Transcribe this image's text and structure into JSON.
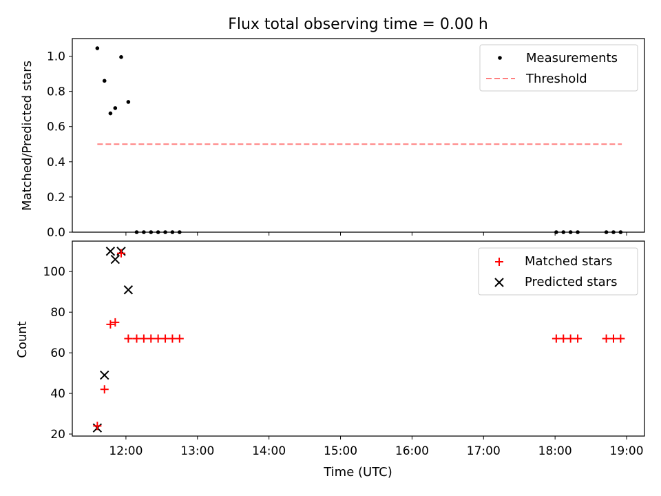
{
  "title": "Flux total observing time = 0.00 h",
  "colors": {
    "measurement": "#000000",
    "threshold": "#ff7f7f",
    "matched": "#ff0000",
    "predicted": "#000000"
  },
  "chart_data": [
    {
      "type": "scatter",
      "ylabel": "Matched/Predicted stars",
      "xlim": [
        "11:15",
        "19:15"
      ],
      "ylim": [
        0,
        1.1
      ],
      "yticks": [
        "0.0",
        "0.2",
        "0.4",
        "0.6",
        "0.8",
        "1.0"
      ],
      "legend_position": "top-right",
      "grid": false,
      "series": [
        {
          "name": "Measurements",
          "marker": "dot",
          "points": [
            [
              "11:36",
              1.045
            ],
            [
              "11:42",
              0.86
            ],
            [
              "11:47",
              0.675
            ],
            [
              "11:51",
              0.705
            ],
            [
              "11:56",
              0.995
            ],
            [
              "12:02",
              0.74
            ],
            [
              "12:09",
              0.0
            ],
            [
              "12:15",
              0.0
            ],
            [
              "12:21",
              0.0
            ],
            [
              "12:27",
              0.0
            ],
            [
              "12:33",
              0.0
            ],
            [
              "12:39",
              0.0
            ],
            [
              "12:45",
              0.0
            ],
            [
              "18:01",
              0.0
            ],
            [
              "18:07",
              0.0
            ],
            [
              "18:13",
              0.0
            ],
            [
              "18:19",
              0.0
            ],
            [
              "18:43",
              0.0
            ],
            [
              "18:49",
              0.0
            ],
            [
              "18:55",
              0.0
            ]
          ]
        },
        {
          "name": "Threshold",
          "marker": "dashed-line",
          "points": [
            [
              "11:36",
              0.5
            ],
            [
              "18:56",
              0.5
            ]
          ]
        }
      ]
    },
    {
      "type": "scatter",
      "xlabel": "Time (UTC)",
      "ylabel": "Count",
      "xlim": [
        "11:15",
        "19:15"
      ],
      "ylim": [
        19,
        115
      ],
      "yticks": [
        "20",
        "40",
        "60",
        "80",
        "100"
      ],
      "xticks": [
        "12:00",
        "13:00",
        "14:00",
        "15:00",
        "16:00",
        "17:00",
        "18:00",
        "19:00"
      ],
      "legend_position": "top-right",
      "grid": false,
      "series": [
        {
          "name": "Matched stars",
          "marker": "plus",
          "points": [
            [
              "11:36",
              24
            ],
            [
              "11:42",
              42
            ],
            [
              "11:47",
              74
            ],
            [
              "11:51",
              75
            ],
            [
              "11:56",
              109
            ],
            [
              "12:02",
              67
            ],
            [
              "12:09",
              67
            ],
            [
              "12:15",
              67
            ],
            [
              "12:21",
              67
            ],
            [
              "12:27",
              67
            ],
            [
              "12:33",
              67
            ],
            [
              "12:39",
              67
            ],
            [
              "12:45",
              67
            ],
            [
              "18:01",
              67
            ],
            [
              "18:07",
              67
            ],
            [
              "18:13",
              67
            ],
            [
              "18:19",
              67
            ],
            [
              "18:43",
              67
            ],
            [
              "18:49",
              67
            ],
            [
              "18:55",
              67
            ]
          ]
        },
        {
          "name": "Predicted stars",
          "marker": "x",
          "points": [
            [
              "11:36",
              23
            ],
            [
              "11:42",
              49
            ],
            [
              "11:47",
              110
            ],
            [
              "11:51",
              106
            ],
            [
              "11:56",
              110
            ],
            [
              "12:02",
              91
            ]
          ]
        }
      ]
    }
  ]
}
